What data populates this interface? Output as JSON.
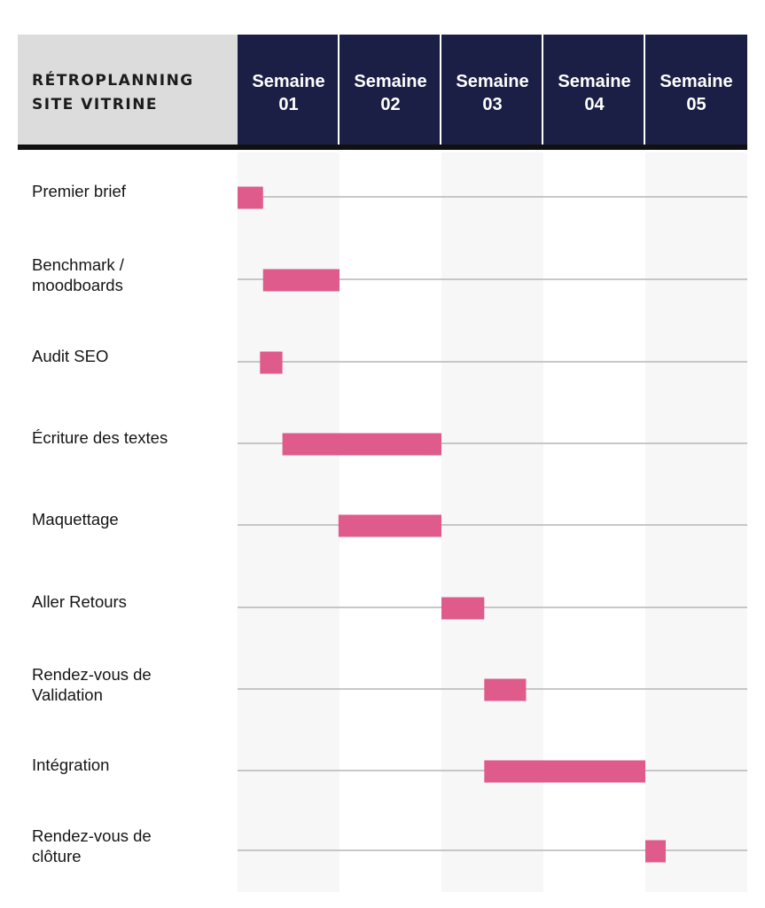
{
  "chart_data": {
    "type": "gantt",
    "title": "RÉTROPLANNING SITE VITRINE",
    "title_lines": [
      "RÉTROPLANNING",
      "SITE VITRINE"
    ],
    "x_unit": "weeks",
    "xlim": [
      0,
      5
    ],
    "columns": [
      {
        "line1": "Semaine",
        "line2": "01"
      },
      {
        "line1": "Semaine",
        "line2": "02"
      },
      {
        "line1": "Semaine",
        "line2": "03"
      },
      {
        "line1": "Semaine",
        "line2": "04"
      },
      {
        "line1": "Semaine",
        "line2": "05"
      }
    ],
    "tasks": [
      {
        "lines": [
          "Premier brief"
        ],
        "start": 0.0,
        "end": 0.25
      },
      {
        "lines": [
          "Benchmark /",
          "moodboards"
        ],
        "start": 0.25,
        "end": 1.0
      },
      {
        "lines": [
          "Audit SEO"
        ],
        "start": 0.22,
        "end": 0.44
      },
      {
        "lines": [
          "Écriture des textes"
        ],
        "start": 0.44,
        "end": 2.0
      },
      {
        "lines": [
          "Maquettage"
        ],
        "start": 0.99,
        "end": 2.0
      },
      {
        "lines": [
          "Aller Retours"
        ],
        "start": 2.0,
        "end": 2.42
      },
      {
        "lines": [
          "Rendez-vous de",
          "Validation"
        ],
        "start": 2.42,
        "end": 2.83
      },
      {
        "lines": [
          "Intégration"
        ],
        "start": 2.42,
        "end": 4.0
      },
      {
        "lines": [
          "Rendez-vous de",
          "clôture"
        ],
        "start": 4.0,
        "end": 4.2
      }
    ],
    "grid": "horizontal row lines",
    "colors": {
      "header_bg": "#1c1f45",
      "header_text": "#ffffff",
      "title_bg": "#dcdcdc",
      "separator": "#101010",
      "bar": "#de5b8b",
      "row_line": "#a8a8a8",
      "column_shade": "#f7f7f7"
    }
  }
}
